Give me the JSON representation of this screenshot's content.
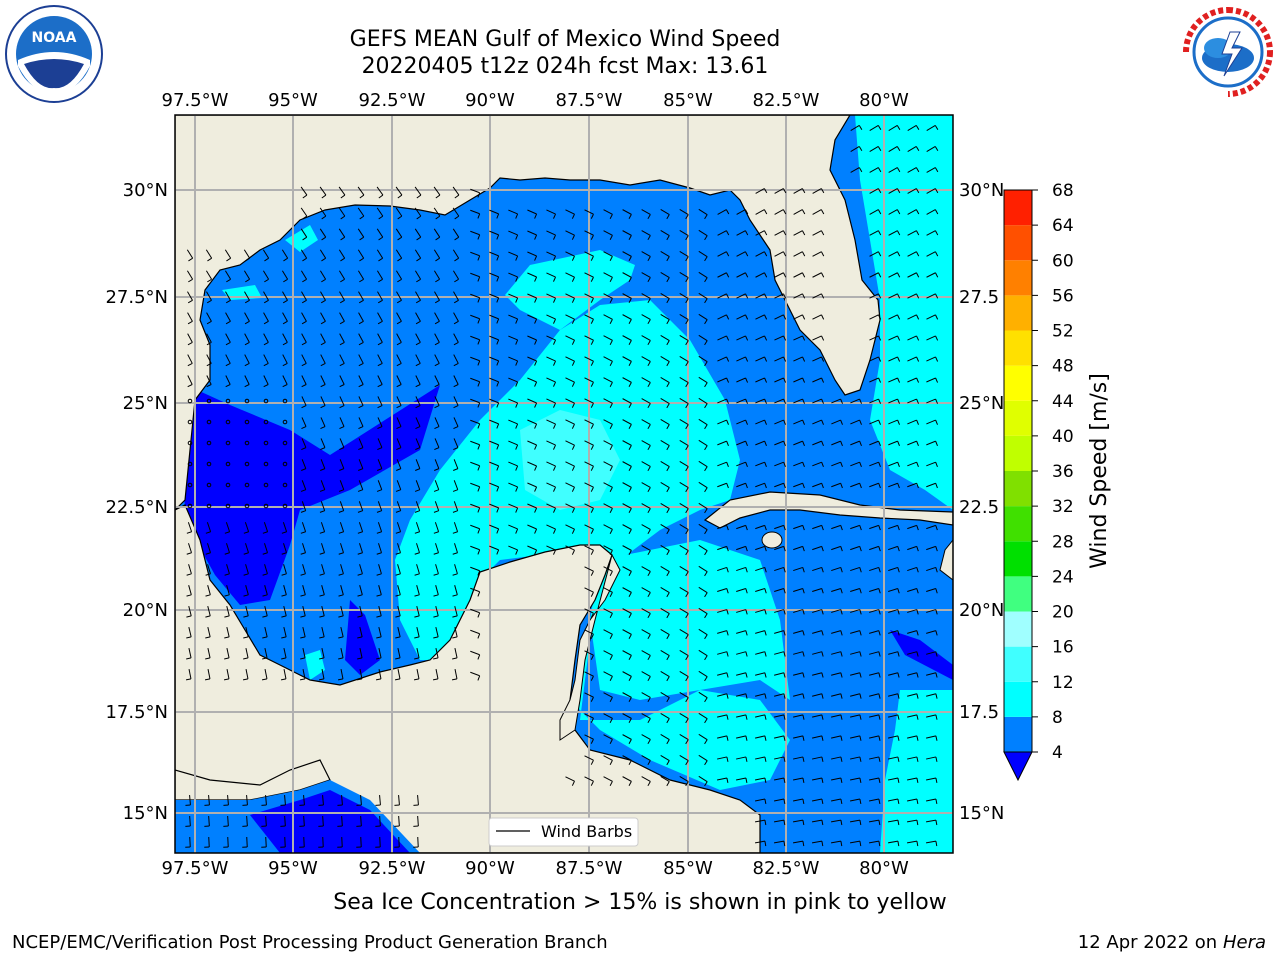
{
  "title_line1": "GEFS MEAN Gulf of Mexico Wind Speed",
  "title_line2": "20220405 t12z 024h fcst   Max: 13.61",
  "note": "Sea Ice Concentration > 15% is shown in pink to yellow",
  "footer_left": "NCEP/EMC/Verification Post Processing Product Generation Branch",
  "footer_date": "12 Apr 2022 on ",
  "footer_host": "Hera",
  "legend_label": "Wind Barbs",
  "colorbar": {
    "label": "Wind Speed [m/s]",
    "ticks": [
      "4",
      "8",
      "12",
      "16",
      "20",
      "24",
      "28",
      "32",
      "36",
      "40",
      "44",
      "48",
      "52",
      "56",
      "60",
      "64",
      "68"
    ],
    "colors": [
      "#0080ff",
      "#00ffff",
      "#40ffff",
      "#a0ffff",
      "#40ff80",
      "#00e000",
      "#40e000",
      "#80e000",
      "#c0ff00",
      "#e0ff00",
      "#ffff00",
      "#ffe000",
      "#ffb000",
      "#ff8000",
      "#ff5000",
      "#ff2000",
      "#ff0000"
    ],
    "under_color": "#0000ff"
  },
  "lon_labels": [
    "97.5°W",
    "95°W",
    "92.5°W",
    "90°W",
    "87.5°W",
    "85°W",
    "82.5°W",
    "80°W"
  ],
  "lat_labels": [
    "30°N",
    "27.5°N",
    "25°N",
    "22.5°N",
    "20°N",
    "17.5°N",
    "15°N"
  ],
  "lat_labels_right": [
    "30°N",
    "27.5",
    "25°N",
    "22.5",
    "20°N",
    "17.5",
    "15°N"
  ],
  "map_colors": {
    "land": "#efedde",
    "grid": "#b0b0b0",
    "low": "#0000ff",
    "mid": "#0080ff",
    "high": "#00ffff",
    "higher": "#40ffff"
  },
  "icons": {
    "noaa": "noaa-logo",
    "nws": "nws-logo"
  }
}
